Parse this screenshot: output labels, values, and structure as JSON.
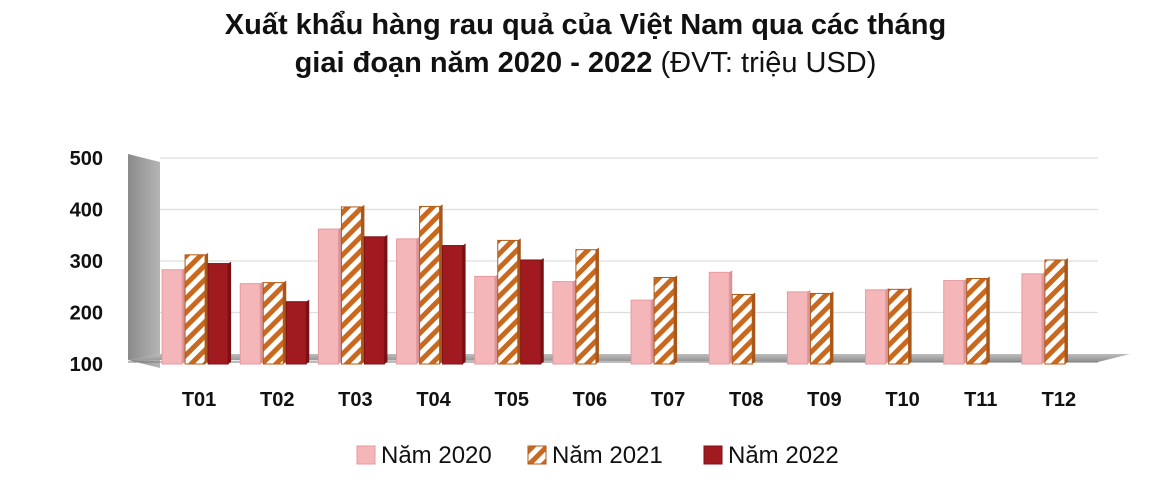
{
  "title_line1": "Xuất khẩu hàng rau quả của Việt Nam qua các tháng",
  "title_line2_main": "giai đoạn năm 2020 - 2022",
  "title_line2_unit": "(ĐVT: triệu USD)",
  "chart_data": {
    "type": "bar",
    "categories": [
      "T01",
      "T02",
      "T03",
      "T04",
      "T05",
      "T06",
      "T07",
      "T08",
      "T09",
      "T10",
      "T11",
      "T12"
    ],
    "series": [
      {
        "name": "Năm 2020",
        "values": [
          283,
          256,
          362,
          343,
          270,
          260,
          224,
          278,
          240,
          244,
          262,
          275
        ],
        "color": "#f4b6b8"
      },
      {
        "name": "Năm 2021",
        "values": [
          312,
          258,
          405,
          406,
          340,
          322,
          268,
          235,
          237,
          245,
          266,
          302
        ],
        "color": "#c8691f"
      },
      {
        "name": "Năm 2022",
        "values": [
          295,
          221,
          347,
          330,
          302,
          null,
          null,
          null,
          null,
          null,
          null,
          null
        ],
        "color": "#a01a1f"
      }
    ],
    "ylim": [
      100,
      500
    ],
    "yticks": [
      500,
      400,
      300,
      200,
      100
    ],
    "grid": true,
    "legend_position": "bottom"
  }
}
